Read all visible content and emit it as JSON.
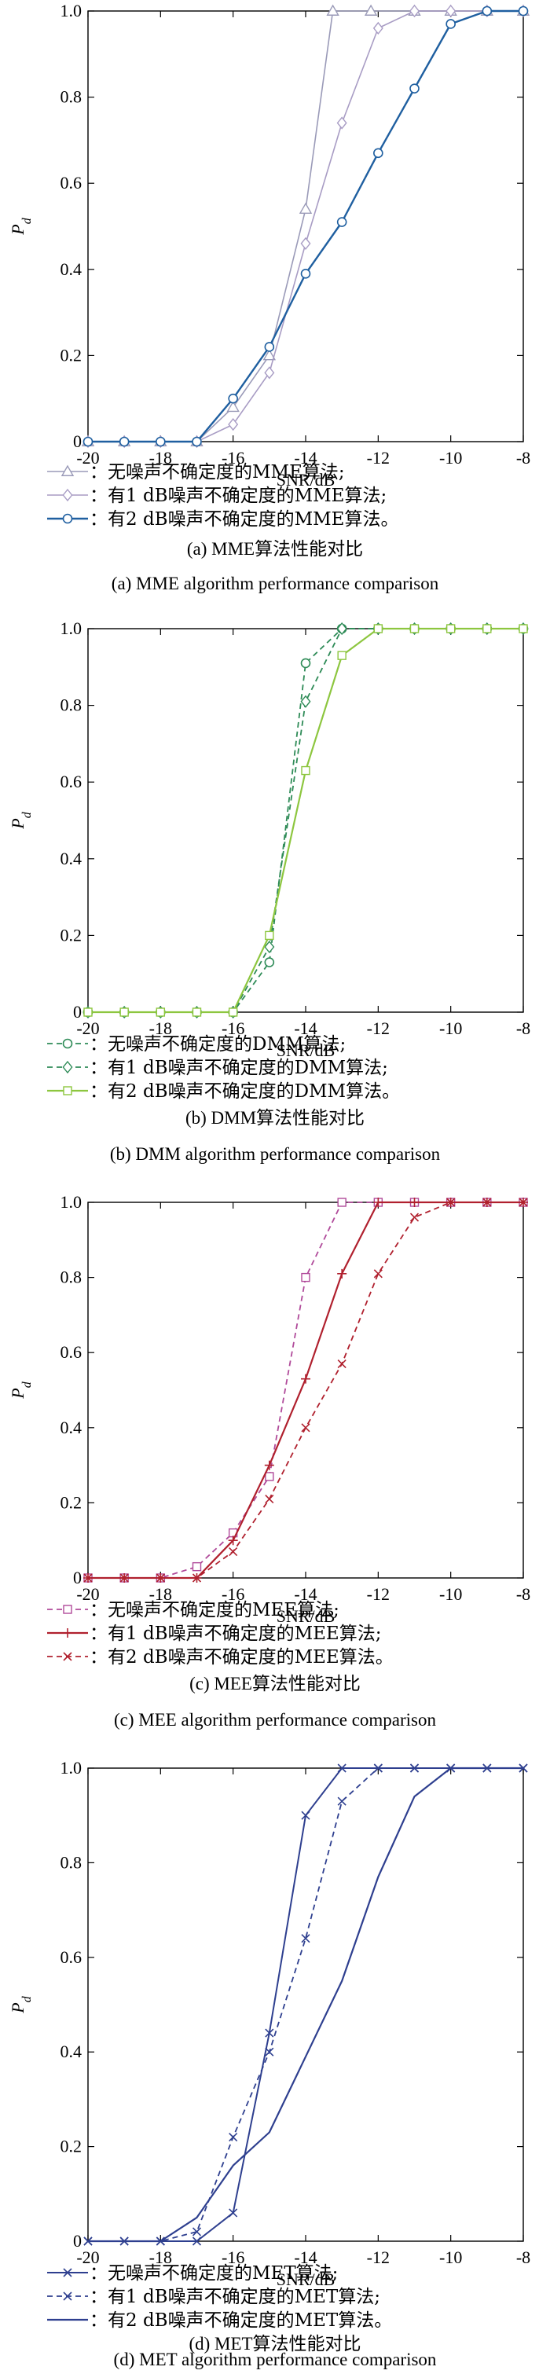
{
  "chart_data": [
    {
      "type": "line",
      "x": [
        -20,
        -19,
        -18,
        -17,
        -16,
        -15,
        -14,
        -13,
        -12,
        -11,
        -10,
        -9,
        -8
      ],
      "xlabel": "SNR/dB",
      "ylabel": "P_d",
      "xlim": [
        -20,
        -8
      ],
      "ylim": [
        0,
        1
      ],
      "xticks": [
        "-20",
        "-18",
        "-16",
        "-14",
        "-12",
        "-10",
        "-8"
      ],
      "yticks": [
        "0",
        "0.2",
        "0.4",
        "0.6",
        "0.8",
        "1.0"
      ],
      "caption_cn": "(a) MME算法性能对比",
      "caption_en": "(a) MME algorithm performance comparison",
      "series": [
        {
          "name": "：无噪声不确定度的MME算法;",
          "color": "#9a9ab8",
          "dash": "",
          "marker": "triangle",
          "width": 1.6,
          "x": [
            -20,
            -19,
            -18,
            -17,
            -16,
            -15,
            -14,
            -13.25,
            -12.2,
            -11,
            -10,
            -9,
            -8
          ],
          "y": [
            0,
            0,
            0,
            0,
            0.08,
            0.2,
            0.54,
            1.0,
            1.0,
            1.0,
            1.0,
            1.0,
            1.0
          ]
        },
        {
          "name": "：有1 dB噪声不确定度的MME算法;",
          "color": "#a89cc4",
          "dash": "",
          "marker": "diamond",
          "width": 1.6,
          "x": [
            -20,
            -19,
            -18,
            -17,
            -16,
            -15,
            -14,
            -13,
            -12,
            -11,
            -10,
            -9,
            -8
          ],
          "y": [
            0,
            0,
            0,
            0,
            0.04,
            0.16,
            0.46,
            0.74,
            0.96,
            1.0,
            1.0,
            1.0,
            1.0
          ]
        },
        {
          "name": "：有2 dB噪声不确定度的MME算法。",
          "color": "#1f5fa0",
          "dash": "",
          "marker": "circle",
          "width": 2.4,
          "x": [
            -20,
            -19,
            -18,
            -17,
            -16,
            -15,
            -14,
            -13,
            -12,
            -11,
            -10,
            -9,
            -8
          ],
          "y": [
            0,
            0,
            0,
            0,
            0.1,
            0.22,
            0.39,
            0.51,
            0.67,
            0.82,
            0.97,
            1.0,
            1.0
          ]
        }
      ]
    },
    {
      "type": "line",
      "x": [
        -20,
        -19,
        -18,
        -17,
        -16,
        -15,
        -14,
        -13,
        -12,
        -11,
        -10,
        -9,
        -8
      ],
      "xlabel": "SNR/dB",
      "ylabel": "P_d",
      "xlim": [
        -20,
        -8
      ],
      "ylim": [
        0,
        1
      ],
      "xticks": [
        "-20",
        "-18",
        "-16",
        "-14",
        "-12",
        "-10",
        "-8"
      ],
      "yticks": [
        "0",
        "0.2",
        "0.4",
        "0.6",
        "0.8",
        "1.0"
      ],
      "caption_cn": "(b) DMM算法性能对比",
      "caption_en": "(b) DMM algorithm performance comparison",
      "series": [
        {
          "name": "：无噪声不确定度的DMM算法;",
          "color": "#2e8b57",
          "dash": "7,5",
          "marker": "circle",
          "width": 1.8,
          "x": [
            -20,
            -19,
            -18,
            -17,
            -16,
            -15,
            -14,
            -13,
            -12,
            -11,
            -10,
            -9,
            -8
          ],
          "y": [
            0,
            0,
            0,
            0,
            0,
            0.13,
            0.91,
            1.0,
            1.0,
            1.0,
            1.0,
            1.0,
            1.0
          ]
        },
        {
          "name": "：有1 dB噪声不确定度的DMM算法;",
          "color": "#2e8b57",
          "dash": "7,5",
          "marker": "diamond",
          "width": 1.8,
          "x": [
            -20,
            -19,
            -18,
            -17,
            -16,
            -15,
            -14,
            -13,
            -12,
            -11,
            -10,
            -9,
            -8
          ],
          "y": [
            0,
            0,
            0,
            0,
            0,
            0.17,
            0.81,
            1.0,
            1.0,
            1.0,
            1.0,
            1.0,
            1.0
          ]
        },
        {
          "name": "：有2 dB噪声不确定度的DMM算法。",
          "color": "#8dc63f",
          "dash": "",
          "marker": "square",
          "width": 2.2,
          "x": [
            -20,
            -19,
            -18,
            -17,
            -16,
            -15,
            -14,
            -13,
            -12,
            -11,
            -10,
            -9,
            -8
          ],
          "y": [
            0,
            0,
            0,
            0,
            0,
            0.2,
            0.63,
            0.93,
            1.0,
            1.0,
            1.0,
            1.0,
            1.0
          ]
        }
      ]
    },
    {
      "type": "line",
      "x": [
        -20,
        -19,
        -18,
        -17,
        -16,
        -15,
        -14,
        -13,
        -12,
        -11,
        -10,
        -9,
        -8
      ],
      "xlabel": "SNR/dB",
      "ylabel": "P_d",
      "xlim": [
        -20,
        -8
      ],
      "ylim": [
        0,
        1
      ],
      "xticks": [
        "-20",
        "-18",
        "-16",
        "-14",
        "-12",
        "-10",
        "-8"
      ],
      "yticks": [
        "0",
        "0.2",
        "0.4",
        "0.6",
        "0.8",
        "1.0"
      ],
      "caption_cn": "(c) MEE算法性能对比",
      "caption_en": "(c) MEE algorithm performance comparison",
      "series": [
        {
          "name": "：无噪声不确定度的MEE算法;",
          "color": "#b04a9a",
          "dash": "7,5",
          "marker": "square",
          "width": 1.8,
          "x": [
            -20,
            -19,
            -18,
            -17,
            -16,
            -15,
            -14,
            -13,
            -12,
            -11,
            -10,
            -9,
            -8
          ],
          "y": [
            0,
            0,
            0,
            0.03,
            0.12,
            0.27,
            0.8,
            1.0,
            1.0,
            1.0,
            1.0,
            1.0,
            1.0
          ]
        },
        {
          "name": "：有1 dB噪声不确定度的MEE算法;",
          "color": "#b0202e",
          "dash": "",
          "marker": "plus",
          "width": 2.2,
          "x": [
            -20,
            -19,
            -18,
            -17,
            -16,
            -15,
            -14,
            -13,
            -12,
            -11,
            -10,
            -9,
            -8
          ],
          "y": [
            0,
            0,
            0,
            0,
            0.1,
            0.3,
            0.53,
            0.81,
            1.0,
            1.0,
            1.0,
            1.0,
            1.0
          ]
        },
        {
          "name": "：有2 dB噪声不确定度的MEE算法。",
          "color": "#b0202e",
          "dash": "7,5",
          "marker": "cross",
          "width": 1.8,
          "x": [
            -20,
            -19,
            -18,
            -17,
            -16,
            -15,
            -14,
            -13,
            -12,
            -11,
            -10,
            -9,
            -8
          ],
          "y": [
            0,
            0,
            0,
            0,
            0.07,
            0.21,
            0.4,
            0.57,
            0.81,
            0.96,
            1.0,
            1.0,
            1.0
          ]
        }
      ]
    },
    {
      "type": "line",
      "x": [
        -20,
        -19,
        -18,
        -17,
        -16,
        -15,
        -14,
        -13,
        -12,
        -11,
        -10,
        -9,
        -8
      ],
      "xlabel": "SNR/dB",
      "ylabel": "P_d",
      "xlim": [
        -20,
        -8
      ],
      "ylim": [
        0,
        1
      ],
      "xticks": [
        "-20",
        "-18",
        "-16",
        "-14",
        "-12",
        "-10",
        "-8"
      ],
      "yticks": [
        "0",
        "0.2",
        "0.4",
        "0.6",
        "0.8",
        "1.0"
      ],
      "caption_cn": "(d) MET算法性能对比",
      "caption_en": "(d) MET algorithm performance comparison",
      "series": [
        {
          "name": "：无噪声不确定度的MET算法;",
          "color": "#2e3f8f",
          "dash": "",
          "marker": "cross",
          "width": 2.0,
          "x": [
            -20,
            -19,
            -18,
            -17,
            -16,
            -15,
            -14,
            -13,
            -12,
            -11,
            -10,
            -9,
            -8
          ],
          "y": [
            0,
            0,
            0,
            0,
            0.06,
            0.44,
            0.9,
            1.0,
            1.0,
            1.0,
            1.0,
            1.0,
            1.0
          ]
        },
        {
          "name": "：有1 dB噪声不确定度的MET算法;",
          "color": "#2e3f8f",
          "dash": "7,5",
          "marker": "cross",
          "width": 1.8,
          "x": [
            -20,
            -19,
            -18,
            -17,
            -16,
            -15,
            -14,
            -13,
            -12,
            -11,
            -10,
            -9,
            -8
          ],
          "y": [
            0,
            0,
            0,
            0.02,
            0.22,
            0.4,
            0.64,
            0.93,
            1.0,
            1.0,
            1.0,
            1.0,
            1.0
          ]
        },
        {
          "name": "：有2 dB噪声不确定度的MET算法。",
          "color": "#2e3f8f",
          "dash": "",
          "marker": "none",
          "width": 2.2,
          "x": [
            -20,
            -19,
            -18,
            -17,
            -16,
            -15,
            -14,
            -13,
            -12,
            -11,
            -10,
            -9,
            -8
          ],
          "y": [
            0,
            0,
            0,
            0.05,
            0.16,
            0.23,
            0.39,
            0.55,
            0.77,
            0.94,
            1.0,
            1.0,
            1.0
          ]
        }
      ]
    }
  ]
}
